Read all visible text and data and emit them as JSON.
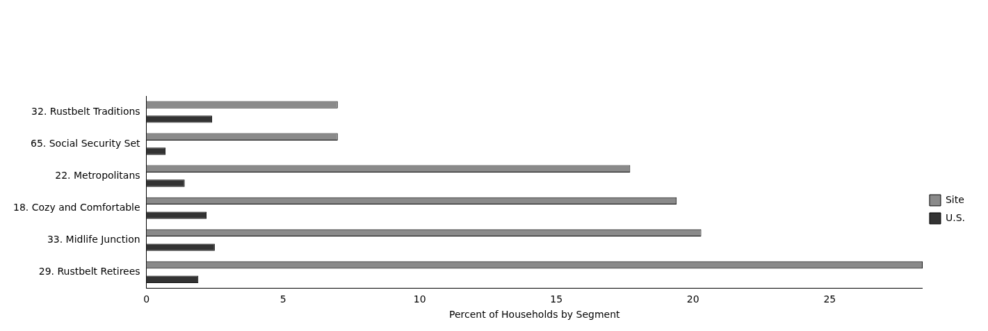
{
  "chart_data": {
    "type": "bar",
    "orientation": "horizontal",
    "xlabel": "Percent of Households by Segment",
    "categories": [
      "32. Rustbelt Traditions",
      "65. Social Security Set",
      "22. Metropolitans",
      "18. Cozy and Comfortable",
      "33. Midlife Junction",
      "29. Rustbelt Retirees"
    ],
    "series": [
      {
        "name": "Site",
        "color": "#8a8a8a",
        "values": [
          7.0,
          7.0,
          17.7,
          19.4,
          20.3,
          28.4
        ]
      },
      {
        "name": "U.S.",
        "color": "#333333",
        "values": [
          2.4,
          0.7,
          1.4,
          2.2,
          2.5,
          1.9
        ]
      }
    ],
    "xlim": [
      0,
      28.4
    ],
    "xticks": [
      0,
      5,
      10,
      15,
      20,
      25
    ],
    "grid": false,
    "legend": "right"
  }
}
